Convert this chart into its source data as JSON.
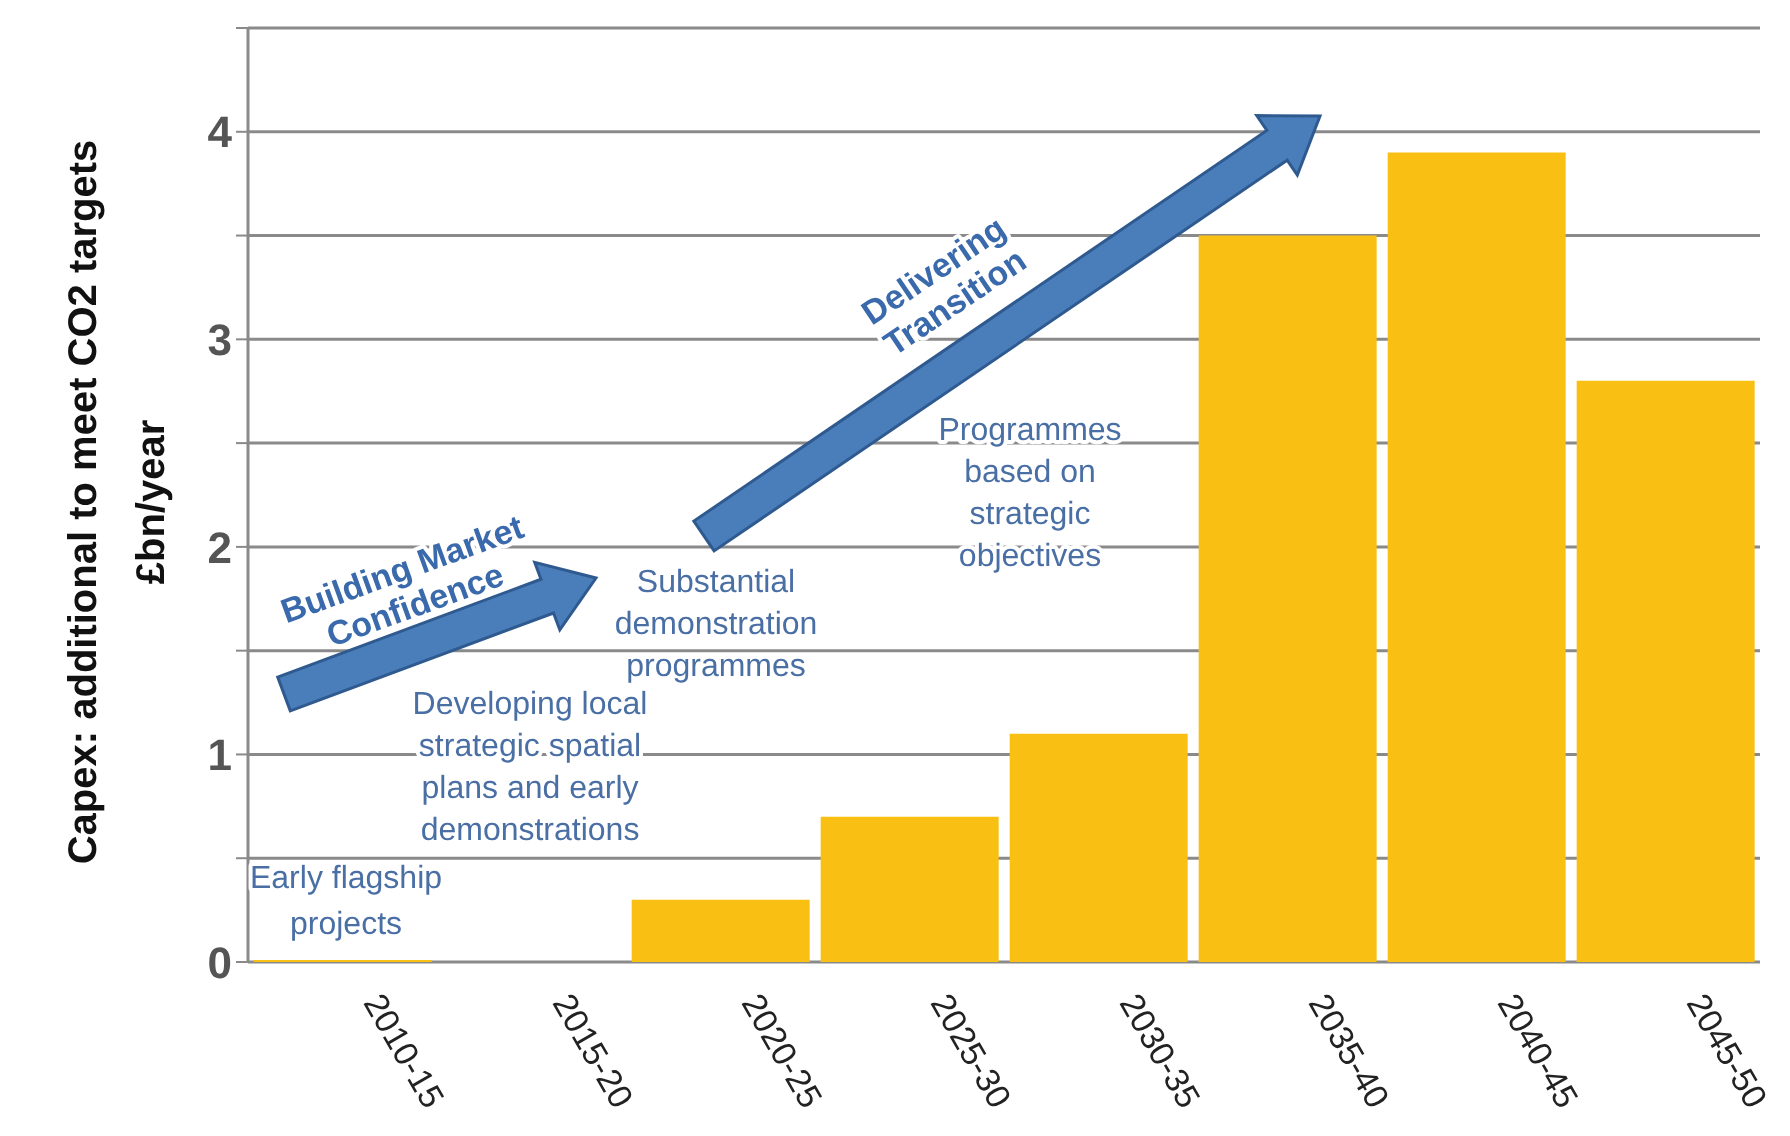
{
  "chart_data": {
    "type": "bar",
    "ylabel": "Capex: additional to meet CO2 targets\n£bn/year",
    "categories": [
      "2010-15",
      "2015-20",
      "2020-25",
      "2025-30",
      "2030-35",
      "2035-40",
      "2040-45",
      "2045-50"
    ],
    "values": [
      0.01,
      0,
      0.3,
      0.7,
      1.1,
      3.5,
      3.9,
      2.8
    ],
    "color": "#f9bf12",
    "ylim": [
      0,
      4.5
    ],
    "yticks": [
      0,
      {
        "value": 0.5,
        "label": null
      },
      1,
      {
        "value": 1.5,
        "label": null
      },
      2,
      {
        "value": 2.5,
        "label": null
      },
      3,
      {
        "value": 3.5,
        "label": null
      },
      4,
      {
        "value": 4.5,
        "label": null
      }
    ],
    "grid": "y",
    "annotations": [
      "Early flagship projects",
      "Developing local strategic spatial plans and early demonstrations",
      "Substantial demonstration programmes",
      "Programmes based on strategic objectives",
      "Building Market Confidence",
      "Delivering Transition"
    ]
  }
}
